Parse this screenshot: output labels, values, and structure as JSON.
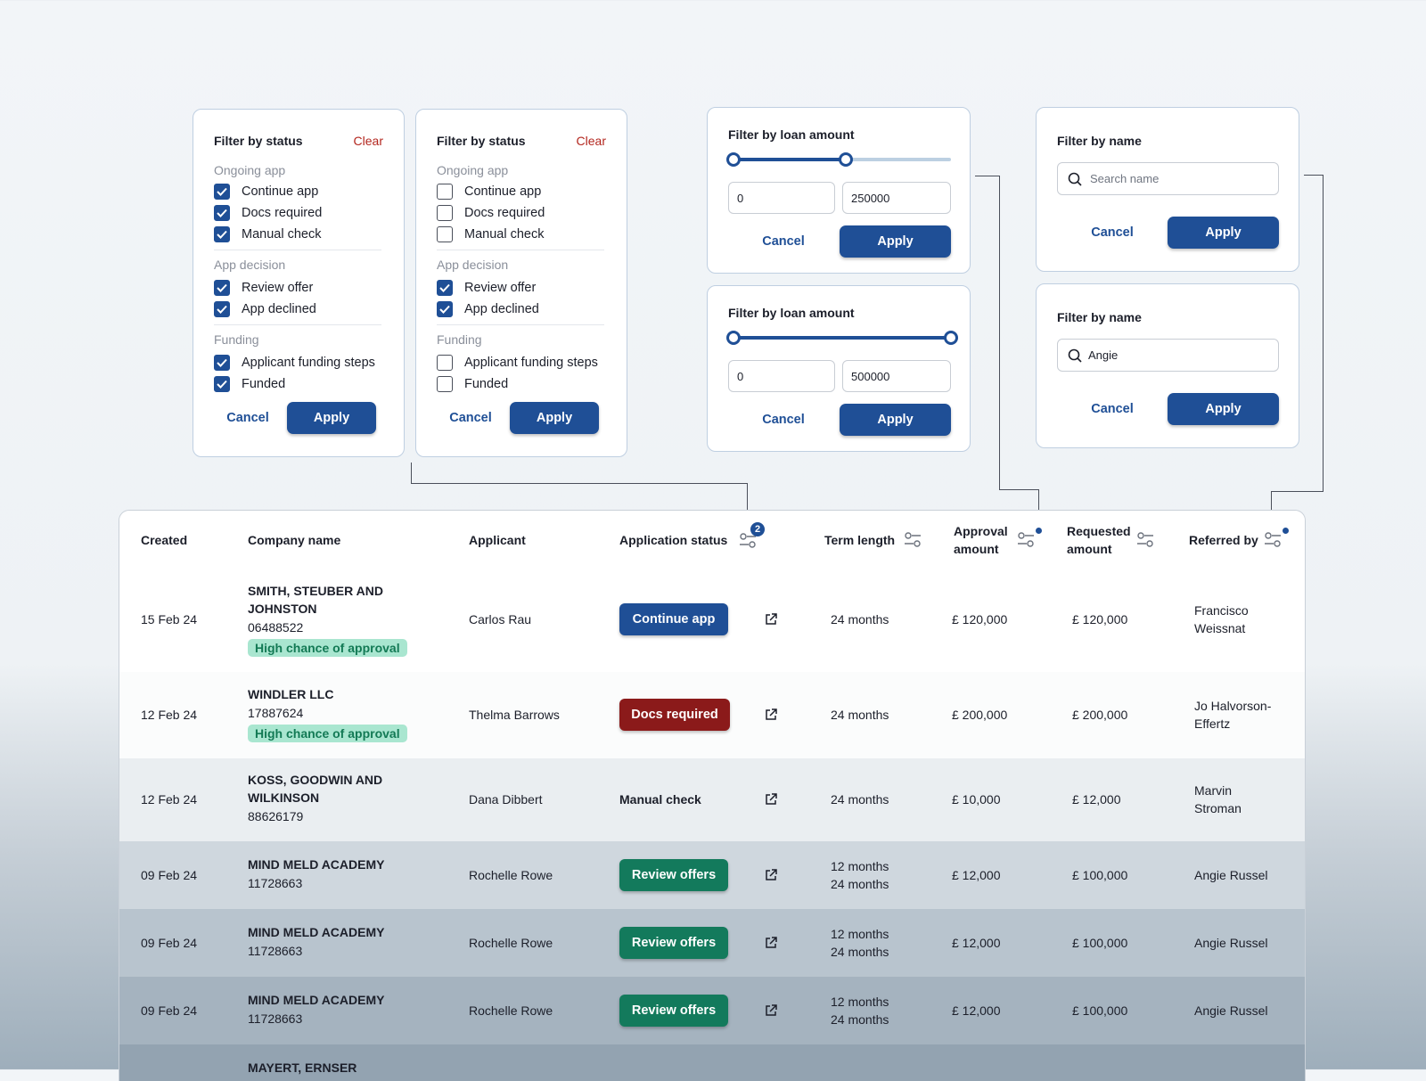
{
  "colors": {
    "primary": "#1f4f96",
    "danger": "#8b1a1a",
    "success": "#137a5c",
    "chance_bg": "#a9e6d0"
  },
  "status_filter_all": {
    "title": "Filter by status",
    "clear": "Clear",
    "groups": [
      {
        "label": "Ongoing app",
        "items": [
          {
            "label": "Continue app",
            "checked": true
          },
          {
            "label": "Docs required",
            "checked": true
          },
          {
            "label": "Manual check",
            "checked": true
          }
        ]
      },
      {
        "label": "App decision",
        "items": [
          {
            "label": "Review offer",
            "checked": true
          },
          {
            "label": "App declined",
            "checked": true
          }
        ]
      },
      {
        "label": "Funding",
        "items": [
          {
            "label": "Applicant funding steps",
            "checked": true
          },
          {
            "label": "Funded",
            "checked": true
          }
        ]
      }
    ],
    "cancel": "Cancel",
    "apply": "Apply"
  },
  "status_filter_some": {
    "title": "Filter by status",
    "clear": "Clear",
    "groups": [
      {
        "label": "Ongoing app",
        "items": [
          {
            "label": "Continue app",
            "checked": false
          },
          {
            "label": "Docs required",
            "checked": false
          },
          {
            "label": "Manual check",
            "checked": false
          }
        ]
      },
      {
        "label": "App decision",
        "items": [
          {
            "label": "Review offer",
            "checked": true
          },
          {
            "label": "App declined",
            "checked": true
          }
        ]
      },
      {
        "label": "Funding",
        "items": [
          {
            "label": "Applicant funding steps",
            "checked": false
          },
          {
            "label": "Funded",
            "checked": false
          }
        ]
      }
    ],
    "cancel": "Cancel",
    "apply": "Apply"
  },
  "loan_filter_partial": {
    "title": "Filter by loan amount",
    "min": "0",
    "max": "250000",
    "slider_min_fraction": 0,
    "slider_max_fraction": 0.5,
    "cancel": "Cancel",
    "apply": "Apply"
  },
  "loan_filter_full": {
    "title": "Filter by loan amount",
    "min": "0",
    "max": "500000",
    "slider_min_fraction": 0,
    "slider_max_fraction": 1,
    "cancel": "Cancel",
    "apply": "Apply"
  },
  "name_filter_empty": {
    "title": "Filter by name",
    "placeholder": "Search name",
    "value": "",
    "cancel": "Cancel",
    "apply": "Apply"
  },
  "name_filter_filled": {
    "title": "Filter by name",
    "placeholder": "Search name",
    "value": "Angie",
    "cancel": "Cancel",
    "apply": "Apply"
  },
  "table": {
    "headers": {
      "created": "Created",
      "company": "Company name",
      "applicant": "Applicant",
      "status": "Application status",
      "status_badge": "2",
      "term": "Term length",
      "approval_1": "Approval",
      "approval_2": "amount",
      "requested_1": "Requested",
      "requested_2": "amount",
      "referred": "Referred by"
    },
    "rows": [
      {
        "created": "15 Feb  24",
        "company_1": "SMITH, STEUBER AND",
        "company_2": "JOHNSTON",
        "company_no": "06488522",
        "tag": "High chance of approval",
        "applicant": "Carlos Rau",
        "status": "Continue app",
        "status_type": "primary",
        "term_1": "24 months",
        "term_2": "",
        "approval": "£ 120,000",
        "requested": "£ 120,000",
        "ref_1": "Francisco",
        "ref_2": "Weissnat"
      },
      {
        "created": "12 Feb  24",
        "company_1": "WINDLER LLC",
        "company_2": "",
        "company_no": "17887624",
        "tag": "High chance of approval",
        "applicant": "Thelma Barrows",
        "status": "Docs required",
        "status_type": "danger",
        "term_1": "24 months",
        "term_2": "",
        "approval": "£ 200,000",
        "requested": "£ 200,000",
        "ref_1": "Jo Halvorson-",
        "ref_2": "Effertz"
      },
      {
        "created": "12 Feb  24",
        "company_1": "KOSS, GOODWIN AND",
        "company_2": "WILKINSON",
        "company_no": "88626179",
        "tag": "",
        "applicant": "Dana Dibbert",
        "status": "Manual check",
        "status_type": "text",
        "term_1": "24 months",
        "term_2": "",
        "approval": "£ 10,000",
        "requested": "£ 12,000",
        "ref_1": "Marvin",
        "ref_2": "Stroman"
      },
      {
        "created": "09 Feb  24",
        "company_1": "MIND MELD ACADEMY",
        "company_2": "",
        "company_no": "11728663",
        "tag": "",
        "applicant": "Rochelle Rowe",
        "status": "Review offers",
        "status_type": "success",
        "term_1": "12 months",
        "term_2": "24 months",
        "approval": "£ 12,000",
        "requested": "£ 100,000",
        "ref_1": "Angie Russel",
        "ref_2": ""
      },
      {
        "created": "09 Feb  24",
        "company_1": "MIND MELD ACADEMY",
        "company_2": "",
        "company_no": "11728663",
        "tag": "",
        "applicant": "Rochelle Rowe",
        "status": "Review offers",
        "status_type": "success",
        "term_1": "12 months",
        "term_2": "24 months",
        "approval": "£ 12,000",
        "requested": "£ 100,000",
        "ref_1": "Angie Russel",
        "ref_2": ""
      },
      {
        "created": "09 Feb  24",
        "company_1": "MIND MELD ACADEMY",
        "company_2": "",
        "company_no": "11728663",
        "tag": "",
        "applicant": "Rochelle Rowe",
        "status": "Review offers",
        "status_type": "success",
        "term_1": "12 months",
        "term_2": "24 months",
        "approval": "£ 12,000",
        "requested": "£ 100,000",
        "ref_1": "Angie Russel",
        "ref_2": ""
      },
      {
        "created": "",
        "company_1": "MAYERT, ERNSER",
        "company_2": "",
        "company_no": "",
        "tag": "",
        "applicant": "",
        "status": "",
        "status_type": "none",
        "term_1": "",
        "term_2": "",
        "approval": "",
        "requested": "",
        "ref_1": "",
        "ref_2": ""
      }
    ]
  }
}
